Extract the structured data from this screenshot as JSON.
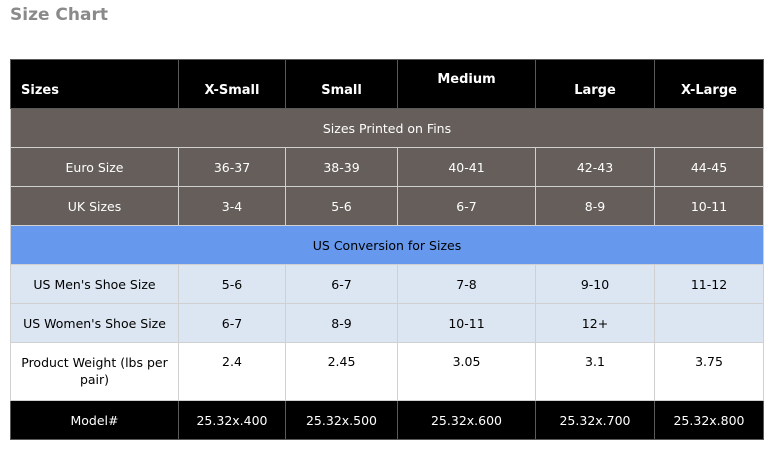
{
  "title": "Size Chart",
  "table": {
    "headers": [
      "Sizes",
      "X-Small",
      "Small",
      "Medium",
      "Large",
      "X-Large"
    ],
    "section_fins": "Sizes Printed on Fins",
    "euro": {
      "label": "Euro Size",
      "values": [
        "36-37",
        "38-39",
        "40-41",
        "42-43",
        "44-45"
      ]
    },
    "uk": {
      "label": "UK Sizes",
      "values": [
        "3-4",
        "5-6",
        "6-7",
        "8-9",
        "10-11"
      ]
    },
    "section_us": "US Conversion for Sizes",
    "us_men": {
      "label": "US Men's Shoe Size",
      "values": [
        "5-6",
        "6-7",
        "7-8",
        "9-10",
        "11-12"
      ]
    },
    "us_women": {
      "label": "US Women's Shoe Size",
      "values": [
        "6-7",
        "8-9",
        "10-11",
        "12+",
        ""
      ]
    },
    "weight": {
      "label": "Product Weight (lbs per pair)",
      "values": [
        "2.4",
        "2.45",
        "3.05",
        "3.1",
        "3.75"
      ]
    },
    "model": {
      "label": "Model#",
      "values": [
        "25.32x.400",
        "25.32x.500",
        "25.32x.600",
        "25.32x.700",
        "25.32x.800"
      ]
    }
  },
  "colors": {
    "header_bg": "#000000",
    "grey_bg": "#655e5a",
    "blue_bg": "#6699ee",
    "light_bg": "#dce6f2"
  }
}
